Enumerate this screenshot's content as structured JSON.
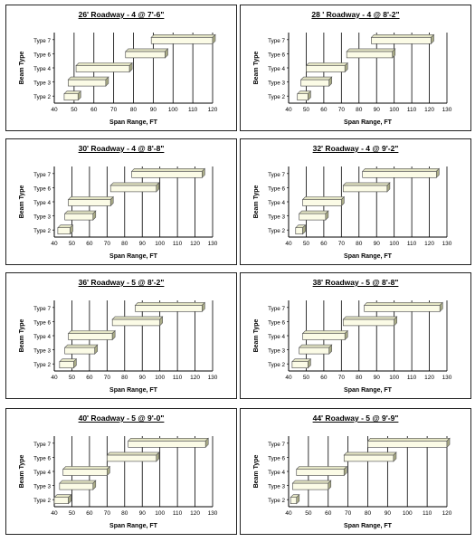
{
  "colors": {
    "bar_fill": "#fbfbe6",
    "bar_side": "#a9ab86",
    "bar_top": "#e3e4c4",
    "grid": "#000000"
  },
  "chart_data": [
    {
      "type": "bar",
      "orientation": "horizontal",
      "title": "26' Roadway - 4 @ 7'-6\"",
      "xlabel": "Span Range, FT",
      "ylabel": "Beam Type",
      "categories": [
        "Type 2",
        "Type 3",
        "Type 4",
        "Type 6",
        "Type 7"
      ],
      "ranges": [
        [
          45,
          52
        ],
        [
          47,
          66
        ],
        [
          51,
          78
        ],
        [
          76,
          96
        ],
        [
          89,
          120
        ]
      ],
      "xlim": [
        40,
        120
      ],
      "xticks": [
        40,
        50,
        60,
        70,
        80,
        90,
        100,
        110,
        120
      ]
    },
    {
      "type": "bar",
      "orientation": "horizontal",
      "title": "28 ' Roadway - 4 @ 8'-2\"",
      "xlabel": "Span Range, FT",
      "ylabel": "Beam Type",
      "categories": [
        "Type 2",
        "Type 3",
        "Type 4",
        "Type 6",
        "Type 7"
      ],
      "ranges": [
        [
          45,
          51
        ],
        [
          47,
          63
        ],
        [
          50,
          72
        ],
        [
          73,
          99
        ],
        [
          87,
          121
        ]
      ],
      "xlim": [
        40,
        130
      ],
      "xticks": [
        40,
        50,
        60,
        70,
        80,
        90,
        100,
        110,
        120,
        130
      ]
    },
    {
      "type": "bar",
      "orientation": "horizontal",
      "title": "30' Roadway - 4 @ 8'-8\"",
      "xlabel": "Span Range, FT",
      "ylabel": "Beam Type",
      "categories": [
        "Type 2",
        "Type 3",
        "Type 4",
        "Type 6",
        "Type 7"
      ],
      "ranges": [
        [
          42,
          49
        ],
        [
          46,
          62
        ],
        [
          48,
          72
        ],
        [
          72,
          98
        ],
        [
          84,
          124
        ]
      ],
      "xlim": [
        40,
        130
      ],
      "xticks": [
        40,
        50,
        60,
        70,
        80,
        90,
        100,
        110,
        120,
        130
      ]
    },
    {
      "type": "bar",
      "orientation": "horizontal",
      "title": "32' Roadway - 4 @ 9'-2\"",
      "xlabel": "Span Range, FT",
      "ylabel": "Beam Type",
      "categories": [
        "Type 2",
        "Type 3",
        "Type 4",
        "Type 6",
        "Type 7"
      ],
      "ranges": [
        [
          44,
          48
        ],
        [
          46,
          61
        ],
        [
          48,
          70
        ],
        [
          71,
          96
        ],
        [
          82,
          124
        ]
      ],
      "xlim": [
        40,
        130
      ],
      "xticks": [
        40,
        50,
        60,
        70,
        80,
        90,
        100,
        110,
        120,
        130
      ]
    },
    {
      "type": "bar",
      "orientation": "horizontal",
      "title": "36' Roadway - 5 @ 8'-2\"",
      "xlabel": "Span Range, FT",
      "ylabel": "Beam Type",
      "categories": [
        "Type 2",
        "Type 3",
        "Type 4",
        "Type 6",
        "Type 7"
      ],
      "ranges": [
        [
          43,
          51
        ],
        [
          46,
          63
        ],
        [
          48,
          73
        ],
        [
          73,
          100
        ],
        [
          86,
          124
        ]
      ],
      "xlim": [
        40,
        130
      ],
      "xticks": [
        40,
        50,
        60,
        70,
        80,
        90,
        100,
        110,
        120,
        130
      ]
    },
    {
      "type": "bar",
      "orientation": "horizontal",
      "title": "38' Roadway - 5 @ 8'-8\"",
      "xlabel": "Span Range, FT",
      "ylabel": "Beam Type",
      "categories": [
        "Type 2",
        "Type 3",
        "Type 4",
        "Type 6",
        "Type 7"
      ],
      "ranges": [
        [
          42,
          51
        ],
        [
          46,
          63
        ],
        [
          48,
          72
        ],
        [
          71,
          100
        ],
        [
          83,
          126
        ]
      ],
      "xlim": [
        40,
        130
      ],
      "xticks": [
        40,
        50,
        60,
        70,
        80,
        90,
        100,
        110,
        120,
        130
      ]
    },
    {
      "type": "bar",
      "orientation": "horizontal",
      "title": "40' Roadway - 5 @ 9'-0\"",
      "xlabel": "Span Range, FT",
      "ylabel": "Beam Type",
      "categories": [
        "Type 2",
        "Type 3",
        "Type 4",
        "Type 6",
        "Type 7"
      ],
      "ranges": [
        [
          40,
          48
        ],
        [
          43,
          62
        ],
        [
          45,
          70
        ],
        [
          70,
          98
        ],
        [
          82,
          126
        ]
      ],
      "xlim": [
        40,
        130
      ],
      "xticks": [
        40,
        50,
        60,
        70,
        80,
        90,
        100,
        110,
        120,
        130
      ]
    },
    {
      "type": "bar",
      "orientation": "horizontal",
      "title": "44' Roadway - 5 @ 9'-9\"",
      "xlabel": "Span Range, FT",
      "ylabel": "Beam Type",
      "categories": [
        "Type 2",
        "Type 3",
        "Type 4",
        "Type 6",
        "Type 7"
      ],
      "ranges": [
        [
          41,
          44
        ],
        [
          42,
          60
        ],
        [
          44,
          68
        ],
        [
          68,
          93
        ],
        [
          80,
          120
        ]
      ],
      "xlim": [
        40,
        120
      ],
      "xticks": [
        40,
        50,
        60,
        70,
        80,
        90,
        100,
        110,
        120
      ]
    }
  ]
}
